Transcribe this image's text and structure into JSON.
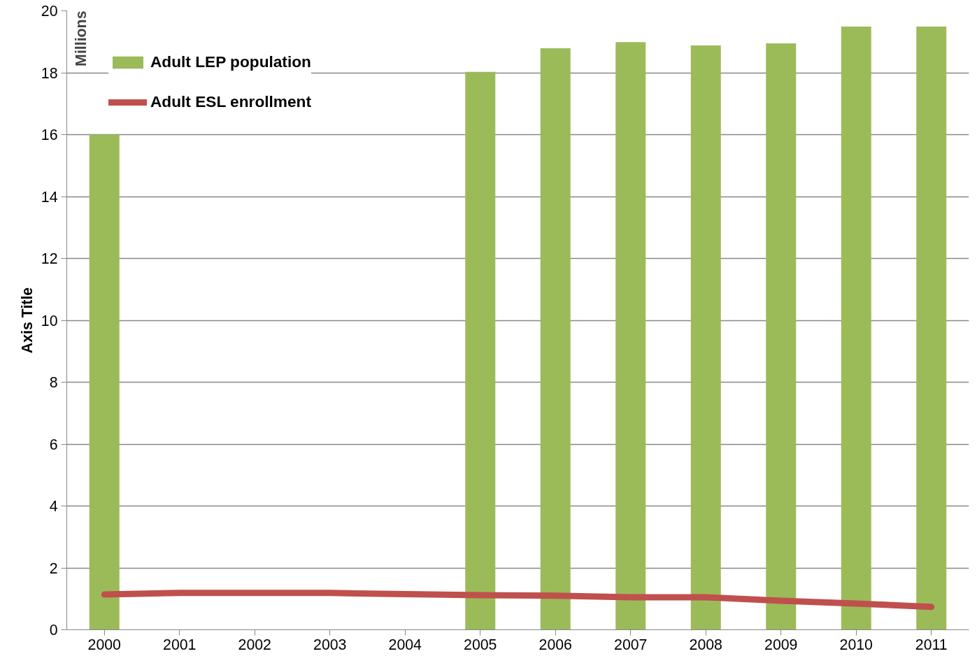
{
  "chart_data": {
    "type": "bar",
    "ylabel": "Axis Title",
    "categories": [
      "2000",
      "2001",
      "2002",
      "2003",
      "2004",
      "2005",
      "2006",
      "2007",
      "2008",
      "2009",
      "2010",
      "2011"
    ],
    "series": [
      {
        "name": "Adult LEP population",
        "color": "#9bbb59",
        "values": [
          16.0,
          null,
          null,
          null,
          null,
          18.03,
          18.79,
          18.99,
          18.88,
          18.95,
          19.49,
          19.49
        ]
      },
      {
        "name": "Adult ESL enrollment",
        "type": "line",
        "color": "#c0504d",
        "values": [
          1.14,
          1.19,
          1.19,
          1.19,
          1.15,
          1.12,
          1.1,
          1.05,
          1.05,
          0.94,
          0.85,
          0.74
        ]
      }
    ],
    "ylim": [
      0,
      20
    ],
    "yticks": [
      0,
      2,
      4,
      6,
      8,
      10,
      12,
      14,
      16,
      18,
      20
    ],
    "grid": "y",
    "legend": "top left",
    "line_style": "solid",
    "marker": "none",
    "annotations": [
      "Millions"
    ]
  }
}
